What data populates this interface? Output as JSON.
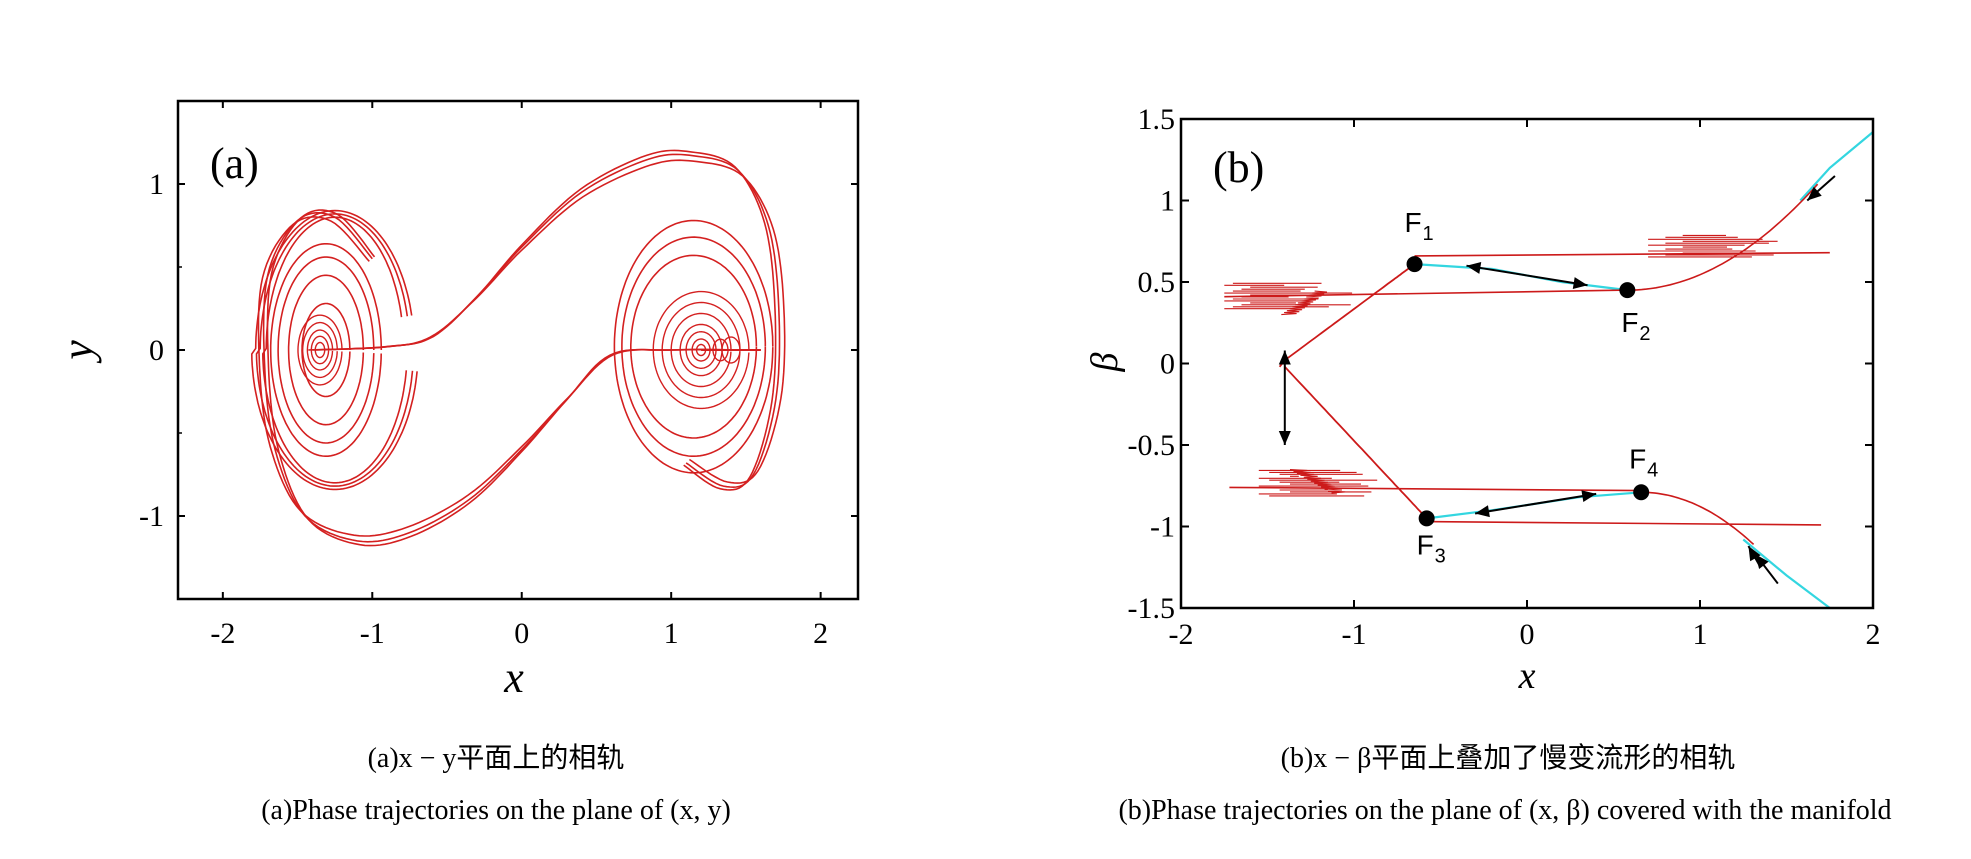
{
  "chart_data": [
    {
      "type": "line",
      "panel_label": "(a)",
      "xlabel": "x",
      "ylabel": "y",
      "xlim": [
        -2.3,
        2.25
      ],
      "ylim": [
        -1.5,
        1.5
      ],
      "xticks": [
        -2,
        -1,
        0,
        1,
        2
      ],
      "xtick_labels": [
        "-2",
        "-1",
        "0",
        "1",
        "2"
      ],
      "yticks": [
        1,
        0,
        -1
      ],
      "ytick_labels": [
        "1",
        "0",
        "-1"
      ],
      "grid": false,
      "series_color": "#d42020",
      "description": "double-scroll phase trajectory with spiral foci near (-1.35, 0) and (1.2, 0)",
      "features": {
        "left_focus": [
          -1.35,
          0
        ],
        "right_focus": [
          1.2,
          0
        ],
        "upper_lobe_peak": [
          1.15,
          1.17
        ],
        "lower_lobe_trough": [
          -1.1,
          -1.15
        ]
      },
      "caption_cn": "(a)x − y平面上的相轨",
      "caption_en": "(a)Phase trajectories on the plane of (x, y)"
    },
    {
      "type": "line",
      "panel_label": "(b)",
      "xlabel": "x",
      "ylabel": "β",
      "xlim": [
        -2,
        2
      ],
      "ylim": [
        -1.5,
        1.5
      ],
      "xticks": [
        -2,
        -1,
        0,
        1,
        2
      ],
      "xtick_labels": [
        "-2",
        "-1",
        "0",
        "1",
        "2"
      ],
      "yticks": [
        1.5,
        1,
        0.5,
        0,
        -0.5,
        -1,
        -1.5
      ],
      "ytick_labels": [
        "1.5",
        "1",
        "0.5",
        "0",
        "-0.5",
        "-1",
        "-1.5"
      ],
      "grid": false,
      "series": [
        {
          "role": "trajectory",
          "color": "#cc1a1a"
        },
        {
          "role": "slow manifold",
          "color": "#33d6e0"
        }
      ],
      "fixed_points": [
        {
          "label": "F",
          "sub": "1",
          "x": -0.65,
          "y": 0.61
        },
        {
          "label": "F",
          "sub": "2",
          "x": 0.58,
          "y": 0.45
        },
        {
          "label": "F",
          "sub": "3",
          "x": -0.58,
          "y": -0.95
        },
        {
          "label": "F",
          "sub": "4",
          "x": 0.66,
          "y": -0.79
        }
      ],
      "branch_levels": {
        "upper_top": 0.68,
        "upper_bottom": 0.41,
        "lower_top": -0.76,
        "lower_bottom": -0.99
      },
      "caption_cn": "(b)x − β平面上叠加了慢变流形的相轨",
      "caption_en": "(b)Phase trajectories on the plane of (x, β) covered with the manifold"
    }
  ]
}
